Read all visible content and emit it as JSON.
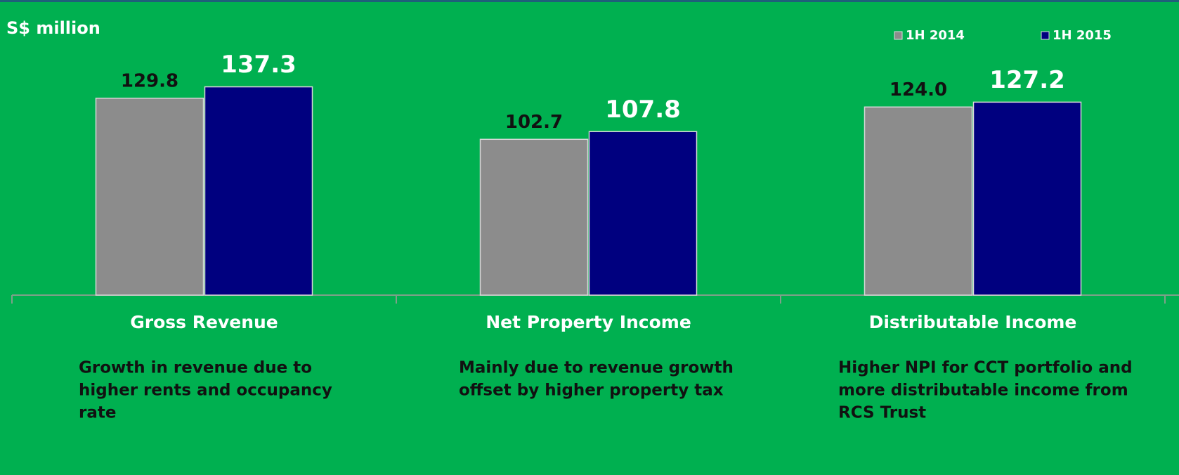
{
  "chart_data": {
    "type": "bar",
    "ylabel": "S$ million",
    "categories": [
      "Gross Revenue",
      "Net Property Income",
      "Distributable Income"
    ],
    "notes": [
      [
        "Growth in revenue due to",
        "higher rents and occupancy",
        "rate"
      ],
      [
        "Mainly due to revenue growth",
        "offset by higher property tax"
      ],
      [
        "Higher NPI for CCT portfolio and",
        "more distributable income from",
        "RCS Trust"
      ]
    ],
    "series": [
      {
        "name": "1H 2014",
        "color": "#8c8c8c",
        "values": [
          129.8,
          102.7,
          124.0
        ],
        "value_labels": [
          "129.8",
          "102.7",
          "124.0"
        ]
      },
      {
        "name": "1H 2015",
        "color": "#00007f",
        "values": [
          137.3,
          107.8,
          127.2
        ],
        "value_labels": [
          "137.3",
          "107.8",
          "127.2"
        ]
      }
    ],
    "legend": "top-right"
  }
}
